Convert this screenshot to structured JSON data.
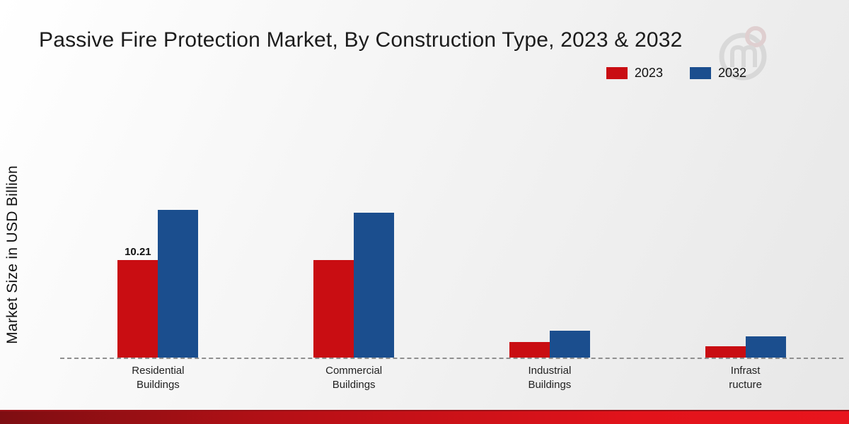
{
  "title": "Passive Fire Protection Market, By Construction Type, 2023 & 2032",
  "ylabel": "Market Size in USD Billion",
  "legend": {
    "items": [
      {
        "label": "2023",
        "color": "#c90d12"
      },
      {
        "label": "2032",
        "color": "#1b4e8e"
      }
    ],
    "position": "top-right"
  },
  "chart_data": {
    "type": "bar",
    "categories": [
      "Residential Buildings",
      "Commercial Buildings",
      "Industrial Buildings",
      "Infrastructure"
    ],
    "category_label_lines": [
      [
        "Residential",
        "Buildings"
      ],
      [
        "Commercial",
        "Buildings"
      ],
      [
        "Industrial",
        "Buildings"
      ],
      [
        "Infrast",
        "ructure"
      ]
    ],
    "series": [
      {
        "name": "2023",
        "color": "#c90d12",
        "values": [
          10.21,
          10.2,
          1.6,
          1.2
        ]
      },
      {
        "name": "2032",
        "color": "#1b4e8e",
        "values": [
          15.5,
          15.2,
          2.8,
          2.2
        ]
      }
    ],
    "data_labels": [
      {
        "series_index": 0,
        "category_index": 0,
        "text": "10.21"
      }
    ],
    "title": "Passive Fire Protection Market, By Construction Type, 2023 & 2032",
    "xlabel": "",
    "ylabel": "Market Size in USD Billion",
    "ylim": [
      0,
      16
    ],
    "grid": false,
    "baseline": "dashed",
    "legend_position": "top-right"
  },
  "watermark": {
    "name": "brand-logo-watermark"
  }
}
